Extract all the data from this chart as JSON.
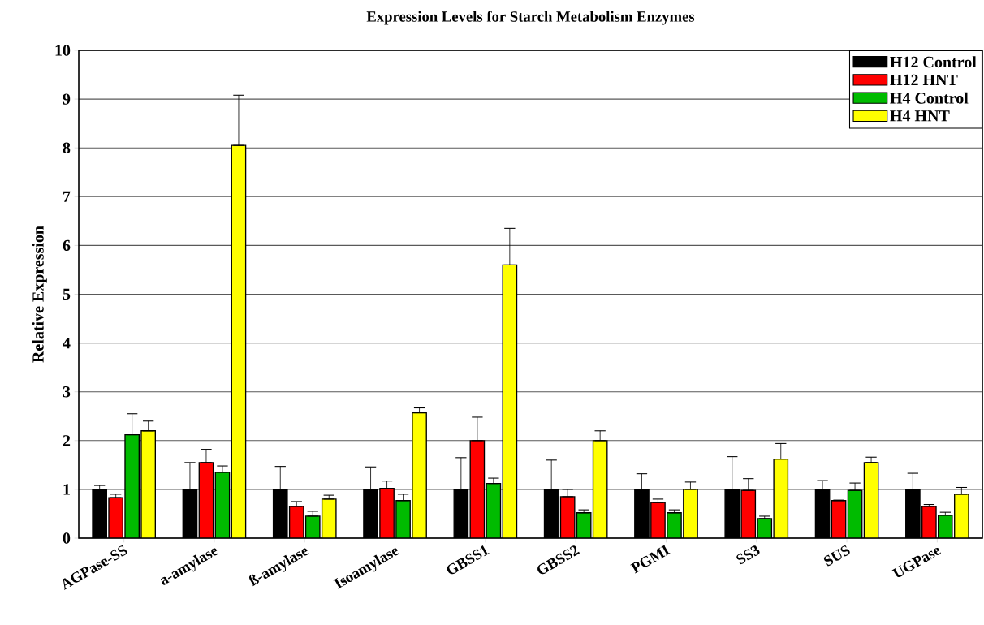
{
  "chart_data": {
    "type": "bar",
    "title": "Expression Levels for Starch Metabolism Enzymes",
    "ylabel": "Relative Expression",
    "categories": [
      "AGPase-SS",
      "a-amylase",
      "ß-amylase",
      "Isoamylase",
      "GBSS1",
      "GBSS2",
      "PGMI",
      "SS3",
      "SUS",
      "UGPase"
    ],
    "series": [
      {
        "name": "H12 Control",
        "color": "#000000",
        "values": [
          1.0,
          1.0,
          1.0,
          1.0,
          1.0,
          1.0,
          1.0,
          1.0,
          1.0,
          1.0
        ],
        "errors": [
          [
            1.0,
            1.08
          ],
          [
            1.0,
            1.55
          ],
          [
            1.0,
            1.47
          ],
          [
            1.0,
            1.46
          ],
          [
            1.0,
            1.65
          ],
          [
            1.0,
            1.6
          ],
          [
            1.0,
            1.32
          ],
          [
            1.0,
            1.67
          ],
          [
            1.0,
            1.18
          ],
          [
            1.0,
            1.33
          ]
        ]
      },
      {
        "name": "H12 HNT",
        "color": "#ff0000",
        "values": [
          0.83,
          1.55,
          0.65,
          1.02,
          2.0,
          0.85,
          0.73,
          0.98,
          0.77,
          0.65
        ],
        "errors": [
          [
            0.83,
            0.9
          ],
          [
            1.55,
            1.82
          ],
          [
            0.65,
            0.75
          ],
          [
            1.02,
            1.17
          ],
          [
            2.0,
            2.48
          ],
          [
            0.85,
            1.0
          ],
          [
            0.73,
            0.8
          ],
          [
            0.98,
            1.22
          ],
          [
            0.77,
            0.78
          ],
          [
            0.65,
            0.69
          ]
        ]
      },
      {
        "name": "H4 Control",
        "color": "#00bb00",
        "values": [
          2.12,
          1.35,
          0.45,
          0.77,
          1.12,
          0.52,
          0.52,
          0.4,
          0.98,
          0.47
        ],
        "errors": [
          [
            2.12,
            2.55
          ],
          [
            1.35,
            1.48
          ],
          [
            0.45,
            0.55
          ],
          [
            0.77,
            0.9
          ],
          [
            1.12,
            1.23
          ],
          [
            0.52,
            0.58
          ],
          [
            0.52,
            0.58
          ],
          [
            0.4,
            0.45
          ],
          [
            0.98,
            1.13
          ],
          [
            0.47,
            0.53
          ]
        ]
      },
      {
        "name": "H4 HNT",
        "color": "#ffff00",
        "values": [
          2.2,
          8.05,
          0.8,
          2.57,
          5.6,
          2.0,
          1.0,
          1.62,
          1.55,
          0.9
        ],
        "errors": [
          [
            2.2,
            2.4
          ],
          [
            8.05,
            9.08
          ],
          [
            0.8,
            0.88
          ],
          [
            2.57,
            2.67
          ],
          [
            5.6,
            6.35
          ],
          [
            2.0,
            2.2
          ],
          [
            1.0,
            1.15
          ],
          [
            1.62,
            1.94
          ],
          [
            1.55,
            1.66
          ],
          [
            0.9,
            1.04
          ]
        ]
      }
    ],
    "ylim": [
      0,
      10
    ],
    "yticks": [
      0,
      1,
      2,
      3,
      4,
      5,
      6,
      7,
      8,
      9,
      10
    ],
    "grid": "y",
    "legend": "top right"
  }
}
